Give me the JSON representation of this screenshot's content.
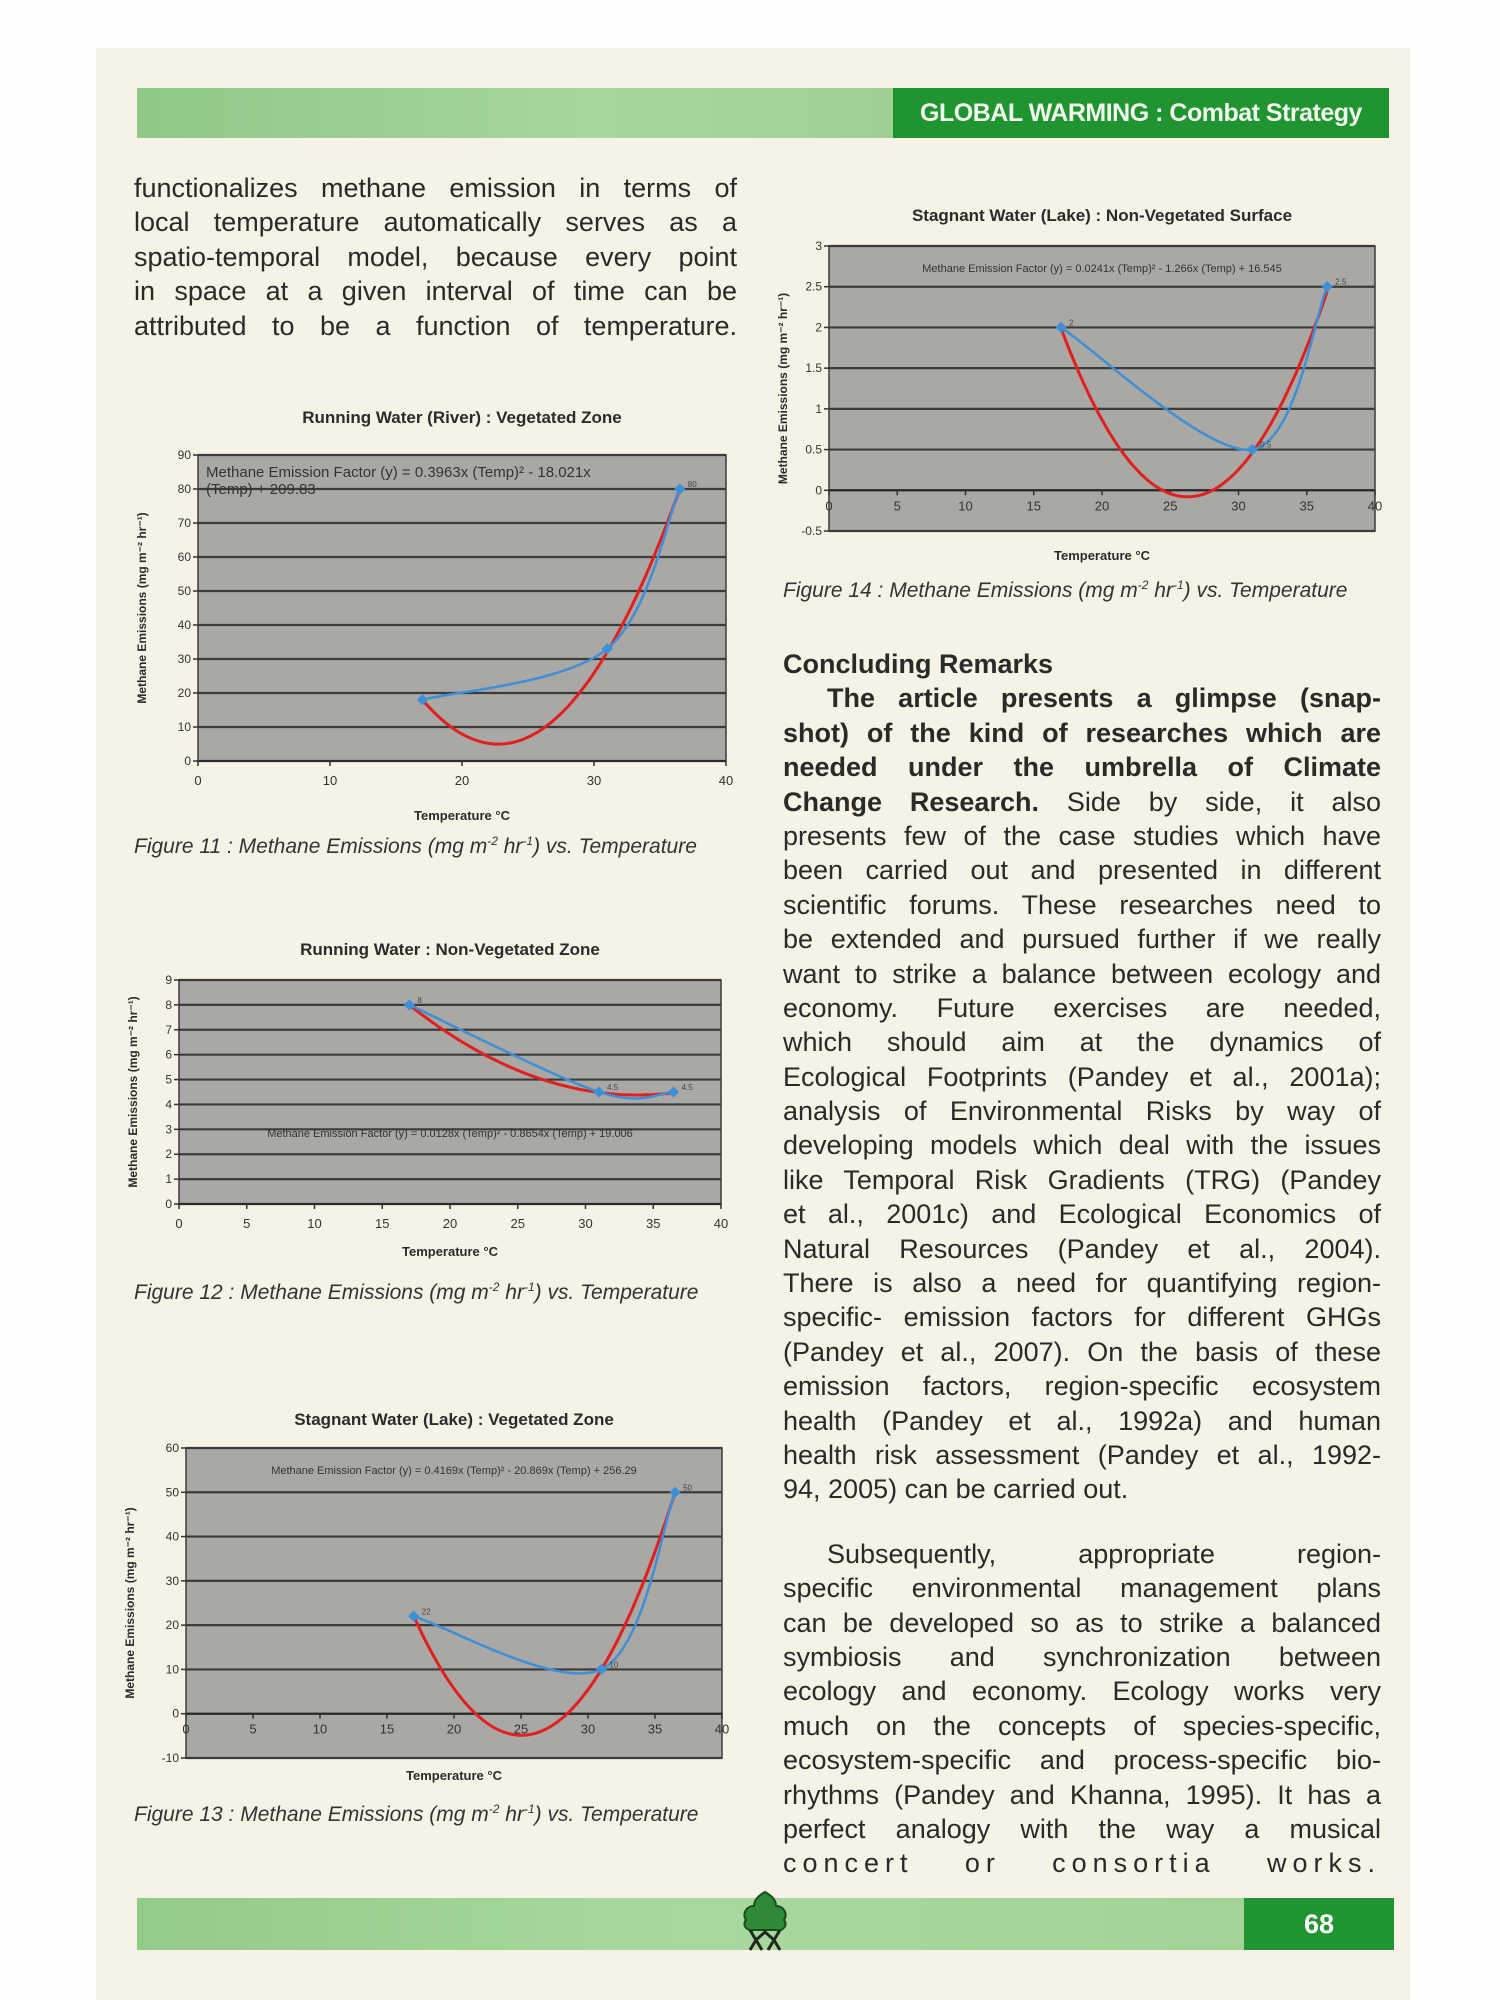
{
  "header": {
    "title": "GLOBAL WARMING : Combat Strategy"
  },
  "footer": {
    "page_number": "68",
    "logo_icon": "tree-logo-icon"
  },
  "left_column": {
    "lines": [
      "functionalizes methane emission in terms of",
      "local temperature automatically serves as a",
      "spatio-temporal model, because every point",
      "in space at a given interval of time can be",
      "attributed to be a function of temperature."
    ]
  },
  "right_column": {
    "heading": "Concluding Remarks",
    "p1_bold_lines": [
      "The article presents a glimpse (snap-",
      "shot) of the kind of researches which are",
      "needed  under the umbrella of  Climate"
    ],
    "p1_mixed_bold": "Change Research.",
    "p1_mixed_rest": " Side by side, it also",
    "p1_lines": [
      "presents few of the case studies which have",
      "been carried out and presented in different",
      "scientific forums. These researches need to",
      "be extended and pursued further if we really",
      "want to strike a balance between ecology and",
      "economy. Future exercises are needed,",
      "which should aim at the dynamics of",
      "Ecological Footprints (Pandey et al., 2001a);",
      "analysis of Environmental Risks by way of",
      "developing models which deal with the issues",
      "like Temporal Risk Gradients (TRG) (Pandey",
      "et al., 2001c) and Ecological Economics of",
      "Natural Resources (Pandey et al., 2004).",
      "There is also a need for quantifying region-",
      "specific- emission factors for different GHGs",
      "(Pandey et al., 2007). On the basis of these",
      "emission factors, region-specific ecosystem",
      "health (Pandey et al., 1992a) and human",
      "health risk assessment (Pandey et al., 1992-",
      "94, 2005) can be carried out."
    ],
    "p2_lines": [
      "Subsequently, appropriate region-",
      "specific environmental management plans",
      "can be developed so as to strike a balanced",
      "symbiosis and synchronization between",
      "ecology and economy. Ecology works very",
      "much on the concepts of species-specific,",
      "ecosystem-specific and process-specific bio-",
      "rhythms (Pandey and Khanna, 1995). It has a",
      "perfect analogy with the way a musical",
      "concert or consortia works."
    ]
  },
  "colors": {
    "header_dark": "#1f9430",
    "header_light": "#a6d69c",
    "plot_bg": "#aaa8a4",
    "observed_line": "#3d8fd6",
    "fit_line": "#e02020"
  },
  "chart_data": [
    {
      "id": "fig11",
      "type": "line",
      "title": "Running Water (River) : Vegetated Zone",
      "xlabel": "Temperature °C",
      "ylabel": "Methane Emissions (mg m⁻² hr⁻¹)",
      "caption_prefix": "Figure 11 : Methane Emissions (mg m",
      "caption_mid": " hr",
      "caption_suffix": ") vs. Temperature",
      "caption_sup1": "-2",
      "caption_sup2": "-1",
      "xlim": [
        0,
        40
      ],
      "ylim": [
        0,
        90
      ],
      "xticks": [
        "0",
        "10",
        "20",
        "30",
        "40"
      ],
      "yticks": [
        "0",
        "10",
        "20",
        "30",
        "40",
        "50",
        "60",
        "70",
        "80",
        "90"
      ],
      "equation": [
        "Methane Emission Factor (y) = 0.3963x (Temp)² - 18.021x",
        "(Temp) + 209.83"
      ],
      "fit_coefficients": [
        0.3963,
        -18.021,
        209.83
      ],
      "x": [
        17,
        31,
        36.5
      ],
      "y": [
        18,
        33,
        80
      ],
      "point_labels": [
        "",
        "",
        "80"
      ]
    },
    {
      "id": "fig12",
      "type": "line",
      "title": "Running Water : Non-Vegetated Zone",
      "xlabel": "Temperature °C",
      "ylabel": "Methane Emissions (mg m⁻² hr⁻¹)",
      "caption_prefix": "Figure 12 : Methane Emissions (mg m",
      "caption_mid": " hr",
      "caption_suffix": ") vs. Temperature",
      "caption_sup1": "-2",
      "caption_sup2": "-1",
      "xlim": [
        0,
        40
      ],
      "ylim": [
        0,
        9
      ],
      "xticks": [
        "0",
        "5",
        "10",
        "15",
        "20",
        "25",
        "30",
        "35",
        "40"
      ],
      "yticks": [
        "0",
        "1",
        "2",
        "3",
        "4",
        "5",
        "6",
        "7",
        "8",
        "9"
      ],
      "equation": [
        "Methane Emission Factor (y) = 0.0128x (Temp)² - 0.8654x (Temp) + 19.006"
      ],
      "fit_coefficients": [
        0.0128,
        -0.8654,
        19.006
      ],
      "x": [
        17,
        31,
        36.5
      ],
      "y": [
        8,
        4.5,
        4.5
      ],
      "point_labels": [
        "8",
        "4.5",
        "4.5"
      ]
    },
    {
      "id": "fig13",
      "type": "line",
      "title": "Stagnant Water (Lake) : Vegetated Zone",
      "xlabel": "Temperature °C",
      "ylabel": "Methane Emissions (mg m⁻² hr⁻¹)",
      "caption_prefix": "Figure 13 : Methane Emissions (mg m",
      "caption_mid": " hr",
      "caption_suffix": ") vs. Temperature",
      "caption_sup1": "-2",
      "caption_sup2": "-1",
      "xlim": [
        0,
        40
      ],
      "ylim": [
        -10,
        60
      ],
      "xticks": [
        "0",
        "5",
        "10",
        "15",
        "20",
        "25",
        "30",
        "35",
        "40"
      ],
      "yticks": [
        "-10",
        "0",
        "10",
        "20",
        "30",
        "40",
        "50",
        "60"
      ],
      "equation": [
        "Methane Emission Factor (y) = 0.4169x (Temp)² - 20.869x (Temp) + 256.29"
      ],
      "fit_coefficients": [
        0.4169,
        -20.869,
        256.29
      ],
      "x": [
        17,
        31,
        36.5
      ],
      "y": [
        22,
        10,
        50
      ],
      "point_labels": [
        "22",
        "10",
        "50"
      ]
    },
    {
      "id": "fig14",
      "type": "line",
      "title": "Stagnant Water (Lake) : Non-Vegetated Surface",
      "xlabel": "Temperature °C",
      "ylabel": "Methane Emissions (mg m⁻² hr⁻¹)",
      "caption_prefix": "Figure 14 : Methane Emissions (mg m",
      "caption_mid": " hr",
      "caption_suffix": ") vs. Temperature",
      "caption_sup1": "-2",
      "caption_sup2": "-1",
      "xlim": [
        0,
        40
      ],
      "ylim": [
        -0.5,
        3
      ],
      "xticks": [
        "0",
        "5",
        "10",
        "15",
        "20",
        "25",
        "30",
        "35",
        "40"
      ],
      "yticks": [
        "-0.5",
        "0",
        "0.5",
        "1",
        "1.5",
        "2",
        "2.5",
        "3"
      ],
      "equation": [
        "Methane Emission Factor (y) = 0.0241x (Temp)² - 1.266x (Temp) + 16.545"
      ],
      "fit_coefficients": [
        0.0241,
        -1.266,
        16.545
      ],
      "x": [
        17,
        31,
        36.5
      ],
      "y": [
        2,
        0.5,
        2.5
      ],
      "point_labels": [
        "2",
        "0.5",
        "2.5"
      ]
    }
  ]
}
